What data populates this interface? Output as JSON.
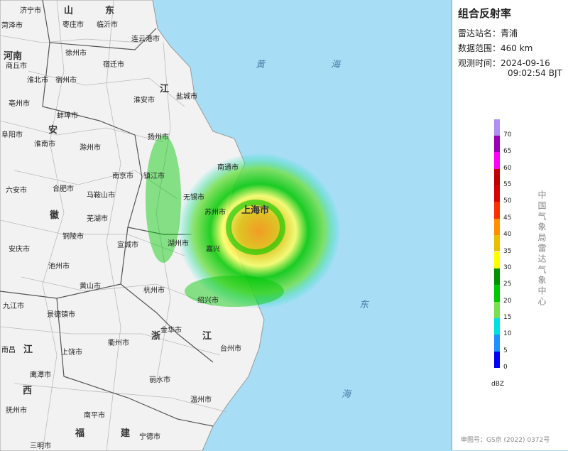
{
  "panel": {
    "title": "组合反射率",
    "rows": [
      {
        "label": "雷达站名：",
        "value": "青浦"
      },
      {
        "label": "数据范围：",
        "value": "460 km"
      },
      {
        "label": "观测时间：",
        "value": "2024-09-16",
        "value2": "09:02:54 BJT"
      }
    ],
    "legend": {
      "ticks": [
        0,
        5,
        10,
        15,
        20,
        25,
        30,
        35,
        40,
        45,
        50,
        55,
        60,
        65,
        70
      ],
      "colors": [
        "#0000f6",
        "#1e90ff",
        "#00e0e0",
        "#78e050",
        "#00c800",
        "#009000",
        "#ffff00",
        "#e7c000",
        "#ff9000",
        "#ff3000",
        "#d60000",
        "#c00000",
        "#ff00f0",
        "#9600b4",
        "#ad90f0"
      ],
      "unit": "dBZ"
    },
    "source": "中国气象局雷达气象中心",
    "approval": "审图号：GS京 (2022) 0372号"
  },
  "map": {
    "labels": [
      "济宁市",
      "山",
      "东",
      "菏泽市",
      "枣庄市",
      "临沂市",
      "连云港市",
      "徐州市",
      "河南",
      "商丘市",
      "宿迁市",
      "江",
      "盐城市",
      "淮北市",
      "宿州市",
      "淮安市",
      "亳州市",
      "蚌埠市",
      "安",
      "扬州市",
      "阜阳市",
      "淮南市",
      "滁州市",
      "黄",
      "海",
      "南通市",
      "南京市",
      "镇江市",
      "六安市",
      "合肥市",
      "马鞍山市",
      "无锡市",
      "上海市",
      "苏州市",
      "徽",
      "芜湖市",
      "铜陵市",
      "安庆市",
      "宣城市",
      "湖州市",
      "嘉兴",
      "池州市",
      "黄山市",
      "杭州市",
      "绍兴市",
      "东",
      "九江市",
      "景德镇市",
      "衢州市",
      "金华市",
      "浙",
      "江",
      "台州市",
      "南昌",
      "江",
      "上饶市",
      "鹰潭市",
      "丽水市",
      "西",
      "温州市",
      "海",
      "抚州市",
      "南平市",
      "福",
      "建",
      "宁德市",
      "三明市"
    ]
  }
}
